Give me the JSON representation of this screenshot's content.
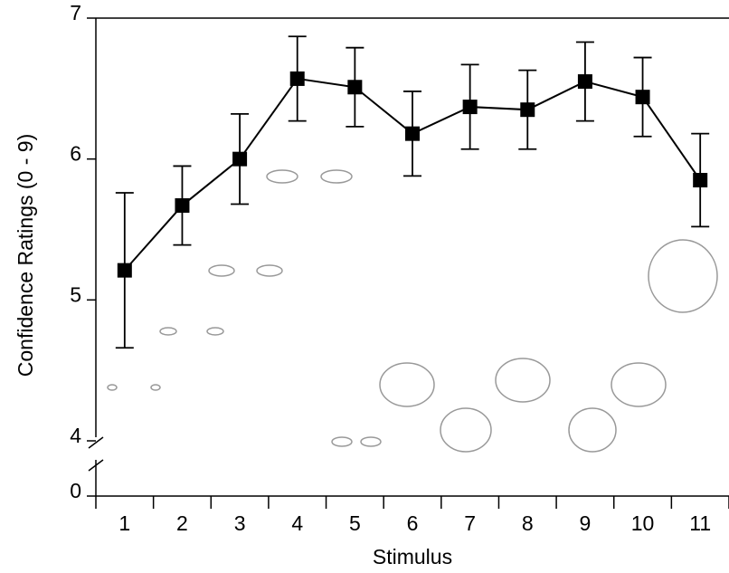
{
  "chart_data": {
    "type": "line",
    "x_label": "Stimulus",
    "y_label": "Confidence Ratings (0 - 9)",
    "categories": [
      "1",
      "2",
      "3",
      "4",
      "5",
      "6",
      "7",
      "8",
      "9",
      "10",
      "11"
    ],
    "values": [
      5.21,
      5.67,
      6.0,
      6.57,
      6.51,
      6.18,
      6.37,
      6.35,
      6.55,
      6.44,
      5.85
    ],
    "errors": [
      0.55,
      0.28,
      0.32,
      0.3,
      0.28,
      0.3,
      0.3,
      0.28,
      0.28,
      0.28,
      0.33
    ],
    "color": "#000000",
    "ylim": [
      0,
      7
    ],
    "y_break": [
      0,
      4
    ],
    "yticks": [
      0,
      4,
      5,
      6,
      7
    ]
  }
}
